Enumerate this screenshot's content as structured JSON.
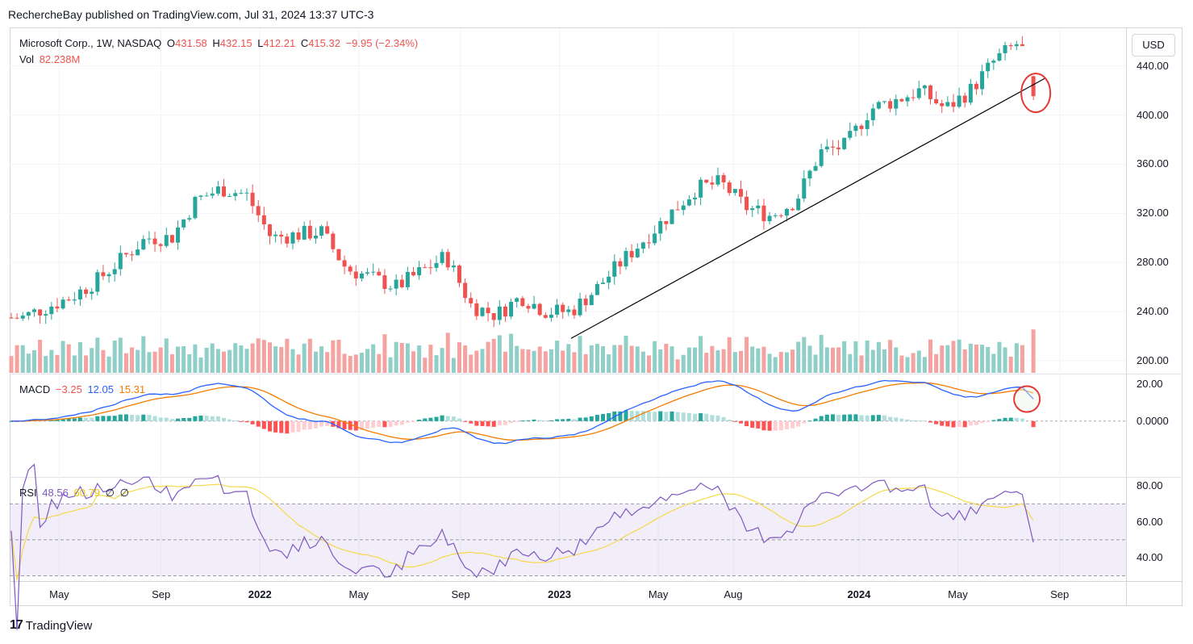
{
  "publisher_line": "RechercheBay published on TradingView.com, Jul 31, 2024 13:37 UTC-3",
  "header": {
    "symbol": "Microsoft Corp., 1W, NASDAQ",
    "o_label": "O",
    "o": "431.58",
    "h_label": "H",
    "h": "432.15",
    "l_label": "L",
    "l": "412.21",
    "c_label": "C",
    "c": "415.32",
    "change": "−9.95 (−2.34%)",
    "vol_label": "Vol",
    "vol": "82.238M"
  },
  "macd_legend": {
    "label": "MACD",
    "hist": "−3.25",
    "macd": "12.05",
    "signal": "15.31"
  },
  "rsi_legend": {
    "label": "RSI",
    "rsi": "48.56",
    "ma": "60.79",
    "v3": "∅",
    "v4": "∅"
  },
  "currency_button": "USD",
  "price_ticks": [
    "440.00",
    "400.00",
    "360.00",
    "320.00",
    "280.00",
    "240.00",
    "200.00"
  ],
  "macd_ticks": [
    "20.00",
    "0.0000"
  ],
  "rsi_ticks": [
    "80.00",
    "60.00",
    "40.00"
  ],
  "time_ticks": [
    {
      "label": "May",
      "bold": false
    },
    {
      "label": "Sep",
      "bold": false
    },
    {
      "label": "2022",
      "bold": true
    },
    {
      "label": "May",
      "bold": false
    },
    {
      "label": "Sep",
      "bold": false
    },
    {
      "label": "2023",
      "bold": true
    },
    {
      "label": "May",
      "bold": false
    },
    {
      "label": "Aug",
      "bold": false
    },
    {
      "label": "2024",
      "bold": true
    },
    {
      "label": "May",
      "bold": false
    },
    {
      "label": "Sep",
      "bold": false
    }
  ],
  "footer_brand": "TradingView",
  "colors": {
    "up": "#26a69a",
    "down": "#ef5350",
    "vol_up": "#8fcfc7",
    "vol_down": "#f4a3a1",
    "macd": "#2962ff",
    "signal": "#f57c00",
    "rsi": "#7e57c2",
    "rsi_ma": "#f5d94a",
    "trendline": "#000000",
    "highlight": "#e53935"
  },
  "chart_data": [
    {
      "type": "candlestick",
      "title": "Microsoft Corp., 1W, NASDAQ",
      "ylim": [
        190,
        470
      ],
      "anchors": [
        {
          "date": "2021-03",
          "close": 235
        },
        {
          "date": "2021-05",
          "close": 252
        },
        {
          "date": "2021-06",
          "close": 265
        },
        {
          "date": "2021-08",
          "close": 300
        },
        {
          "date": "2021-09",
          "close": 300
        },
        {
          "date": "2021-10",
          "close": 331
        },
        {
          "date": "2021-11",
          "close": 340
        },
        {
          "date": "2021-12",
          "close": 335
        },
        {
          "date": "2022-01",
          "close": 300
        },
        {
          "date": "2022-03",
          "close": 305
        },
        {
          "date": "2022-04",
          "close": 275
        },
        {
          "date": "2022-06",
          "close": 260
        },
        {
          "date": "2022-08",
          "close": 285
        },
        {
          "date": "2022-09",
          "close": 245
        },
        {
          "date": "2022-10",
          "close": 237
        },
        {
          "date": "2022-11",
          "close": 252
        },
        {
          "date": "2022-12",
          "close": 240
        },
        {
          "date": "2023-01",
          "close": 240
        },
        {
          "date": "2023-02",
          "close": 258
        },
        {
          "date": "2023-03",
          "close": 280
        },
        {
          "date": "2023-04",
          "close": 300
        },
        {
          "date": "2023-05",
          "close": 320
        },
        {
          "date": "2023-06",
          "close": 340
        },
        {
          "date": "2023-07",
          "close": 345
        },
        {
          "date": "2023-08",
          "close": 325
        },
        {
          "date": "2023-09",
          "close": 318
        },
        {
          "date": "2023-10",
          "close": 330
        },
        {
          "date": "2023-11",
          "close": 370
        },
        {
          "date": "2023-12",
          "close": 375
        },
        {
          "date": "2024-01",
          "close": 405
        },
        {
          "date": "2024-02",
          "close": 412
        },
        {
          "date": "2024-03",
          "close": 420
        },
        {
          "date": "2024-04",
          "close": 405
        },
        {
          "date": "2024-05",
          "close": 420
        },
        {
          "date": "2024-06",
          "close": 445
        },
        {
          "date": "2024-07",
          "close": 460
        },
        {
          "date": "2024-07-31",
          "close": 415.32
        }
      ],
      "last_bar": {
        "open": 431.58,
        "high": 432.15,
        "low": 412.21,
        "close": 415.32,
        "volume": "82.238M"
      },
      "trendline": {
        "from": {
          "date": "2023-01",
          "price": 218
        },
        "to": {
          "date": "2024-08",
          "price": 430
        }
      }
    },
    {
      "type": "line",
      "title": "MACD",
      "series": [
        {
          "name": "MACD",
          "last": 12.05
        },
        {
          "name": "Signal",
          "last": 15.31
        },
        {
          "name": "Histogram",
          "last": -3.25
        }
      ],
      "ylim": [
        -30,
        25
      ]
    },
    {
      "type": "line",
      "title": "RSI",
      "series": [
        {
          "name": "RSI",
          "last": 48.56
        },
        {
          "name": "RSI MA",
          "last": 60.79
        }
      ],
      "bands": [
        70,
        50,
        30
      ],
      "ylim": [
        28,
        84
      ]
    }
  ]
}
